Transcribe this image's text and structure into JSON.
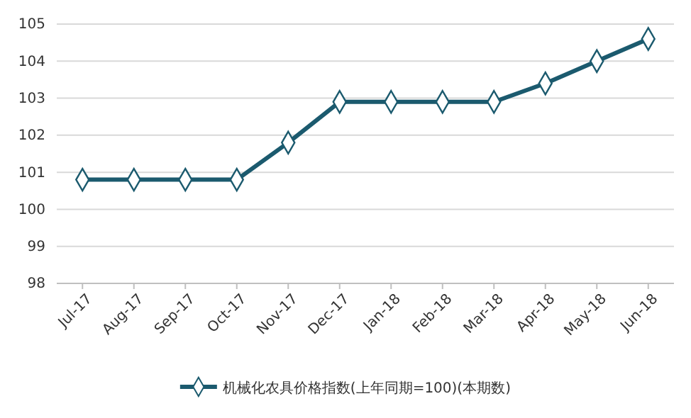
{
  "chart_data": {
    "type": "line",
    "categories": [
      "Jul-17",
      "Aug-17",
      "Sep-17",
      "Oct-17",
      "Nov-17",
      "Dec-17",
      "Jan-18",
      "Feb-18",
      "Mar-18",
      "Apr-18",
      "May-18",
      "Jun-18"
    ],
    "series": [
      {
        "name": "机械化农具价格指数(上年同期=100)(本期数)",
        "color": "#1b5a6e",
        "values": [
          100.8,
          100.8,
          100.8,
          100.8,
          101.8,
          102.9,
          102.9,
          102.9,
          102.9,
          103.4,
          104.0,
          104.6
        ]
      }
    ],
    "ylim": [
      98,
      105
    ],
    "yticks": [
      98,
      99,
      100,
      101,
      102,
      103,
      104,
      105
    ],
    "grid": "y",
    "legend": "bottom",
    "marker": "diamond",
    "line_style": "solid"
  }
}
